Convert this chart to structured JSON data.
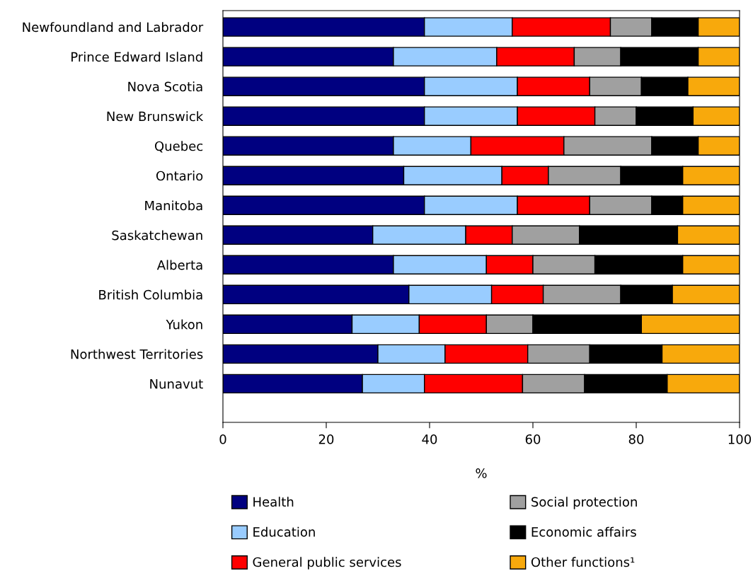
{
  "chart_data": {
    "type": "bar",
    "orientation": "horizontal",
    "stacked": true,
    "xlabel": "%",
    "categories": [
      "Newfoundland and Labrador",
      "Prince Edward Island",
      "Nova Scotia",
      "New Brunswick",
      "Quebec",
      "Ontario",
      "Manitoba",
      "Saskatchewan",
      "Alberta",
      "British Columbia",
      "Yukon",
      "Northwest Territories",
      "Nunavut"
    ],
    "series": [
      {
        "name": "Health",
        "color": "#000080",
        "values": [
          39,
          33,
          39,
          39,
          33,
          35,
          39,
          29,
          33,
          36,
          25,
          30,
          27
        ]
      },
      {
        "name": "Education",
        "color": "#99ccff",
        "values": [
          17,
          20,
          18,
          18,
          15,
          19,
          18,
          18,
          18,
          16,
          13,
          13,
          12
        ]
      },
      {
        "name": "General public services",
        "color": "#ff0000",
        "values": [
          19,
          15,
          14,
          15,
          18,
          9,
          14,
          9,
          9,
          10,
          13,
          16,
          19
        ]
      },
      {
        "name": "Social protection",
        "color": "#a0a0a0",
        "values": [
          8,
          9,
          10,
          8,
          17,
          14,
          12,
          13,
          12,
          15,
          9,
          12,
          12
        ]
      },
      {
        "name": "Economic affairs",
        "color": "#000000",
        "values": [
          9,
          15,
          9,
          11,
          9,
          12,
          6,
          19,
          17,
          10,
          21,
          14,
          16
        ]
      },
      {
        "name": "Other functions¹",
        "color": "#f8a90c",
        "values": [
          8,
          8,
          10,
          9,
          8,
          11,
          11,
          12,
          11,
          13,
          19,
          15,
          14
        ]
      }
    ],
    "xlim": [
      0,
      100
    ],
    "xticks": [
      0,
      20,
      40,
      60,
      80,
      100
    ],
    "grid": false,
    "legend": "bottom"
  }
}
